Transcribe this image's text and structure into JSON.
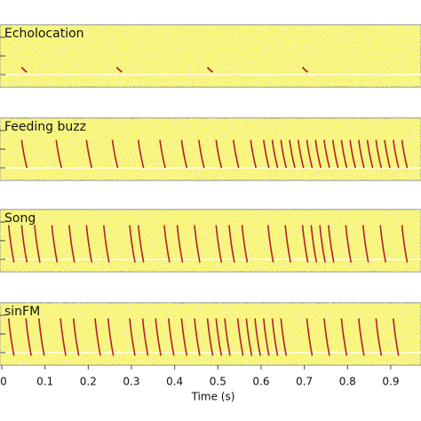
{
  "chart_data": {
    "type": "spectrogram",
    "xlabel": "Time (s)",
    "xlim": [
      0,
      0.97
    ],
    "xticks": [
      0,
      0.1,
      0.2,
      0.3,
      0.4,
      0.5,
      0.6,
      0.7,
      0.8,
      0.9
    ],
    "background": "#f3ee3a",
    "call_color": "#b3202a",
    "panels": [
      {
        "title": "Echolocation",
        "call_times": [
          0.05,
          0.27,
          0.48,
          0.7
        ]
      },
      {
        "title": "Feeding buzz",
        "call_times": [
          0.05,
          0.13,
          0.2,
          0.26,
          0.32,
          0.37,
          0.42,
          0.46,
          0.5,
          0.54,
          0.58,
          0.61,
          0.63,
          0.65,
          0.67,
          0.69,
          0.71,
          0.73,
          0.75,
          0.77,
          0.79,
          0.81,
          0.83,
          0.85,
          0.87,
          0.89,
          0.91,
          0.93
        ]
      },
      {
        "title": "Song",
        "call_times": [
          0.02,
          0.05,
          0.08,
          0.12,
          0.16,
          0.2,
          0.24,
          0.3,
          0.32,
          0.38,
          0.41,
          0.45,
          0.5,
          0.53,
          0.56,
          0.62,
          0.66,
          0.7,
          0.72,
          0.74,
          0.76,
          0.8,
          0.84,
          0.88,
          0.93
        ]
      },
      {
        "title": "sinFM",
        "call_times": [
          0.02,
          0.06,
          0.09,
          0.14,
          0.17,
          0.22,
          0.25,
          0.3,
          0.33,
          0.36,
          0.39,
          0.42,
          0.45,
          0.48,
          0.5,
          0.52,
          0.55,
          0.57,
          0.59,
          0.61,
          0.63,
          0.65,
          0.71,
          0.75,
          0.79,
          0.83,
          0.87,
          0.91
        ]
      }
    ]
  }
}
